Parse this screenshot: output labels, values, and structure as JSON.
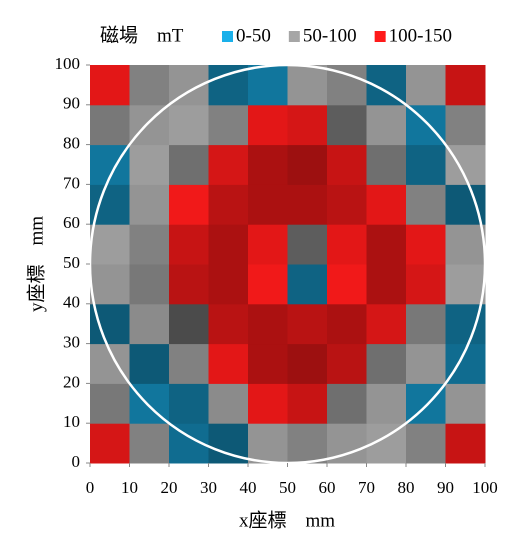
{
  "chart_data": {
    "type": "heatmap",
    "legend_title": "磁場　mT",
    "bands": [
      {
        "label": "0-50",
        "range": [
          0,
          50
        ],
        "color": "#1ab0ea"
      },
      {
        "label": "50-100",
        "range": [
          50,
          100
        ],
        "color": "#a6a6a6"
      },
      {
        "label": "100-150",
        "range": [
          100,
          150
        ],
        "color": "#ff1a1a"
      }
    ],
    "x_label": "x座標　mm",
    "y_label": "y座標　mm",
    "x": [
      5,
      15,
      25,
      35,
      45,
      55,
      65,
      75,
      85,
      95
    ],
    "y": [
      5,
      15,
      25,
      35,
      45,
      55,
      65,
      75,
      85,
      95
    ],
    "z": [
      [
        115,
        70,
        35,
        45,
        60,
        70,
        60,
        55,
        70,
        120
      ],
      [
        75,
        30,
        40,
        65,
        110,
        120,
        80,
        60,
        30,
        60
      ],
      [
        60,
        45,
        70,
        110,
        130,
        135,
        125,
        80,
        60,
        35
      ],
      [
        45,
        65,
        100,
        125,
        130,
        125,
        130,
        115,
        75,
        40
      ],
      [
        60,
        75,
        125,
        130,
        105,
        40,
        105,
        130,
        115,
        55
      ],
      [
        55,
        70,
        120,
        130,
        110,
        90,
        110,
        130,
        110,
        60
      ],
      [
        40,
        60,
        105,
        125,
        130,
        130,
        125,
        110,
        70,
        45
      ],
      [
        30,
        55,
        80,
        115,
        130,
        135,
        120,
        80,
        40,
        55
      ],
      [
        75,
        60,
        55,
        70,
        110,
        115,
        90,
        60,
        30,
        70
      ],
      [
        110,
        70,
        60,
        40,
        30,
        60,
        70,
        40,
        60,
        120
      ]
    ],
    "cell_size": 10,
    "circle": {
      "center": [
        50,
        50
      ],
      "radius": 50,
      "color": "#ffffff"
    },
    "xlim": [
      0,
      100
    ],
    "ylim": [
      0,
      100
    ],
    "xticks": [
      0,
      10,
      20,
      30,
      40,
      50,
      60,
      70,
      80,
      90,
      100
    ],
    "yticks": [
      0,
      10,
      20,
      30,
      40,
      50,
      60,
      70,
      80,
      90,
      100
    ]
  }
}
